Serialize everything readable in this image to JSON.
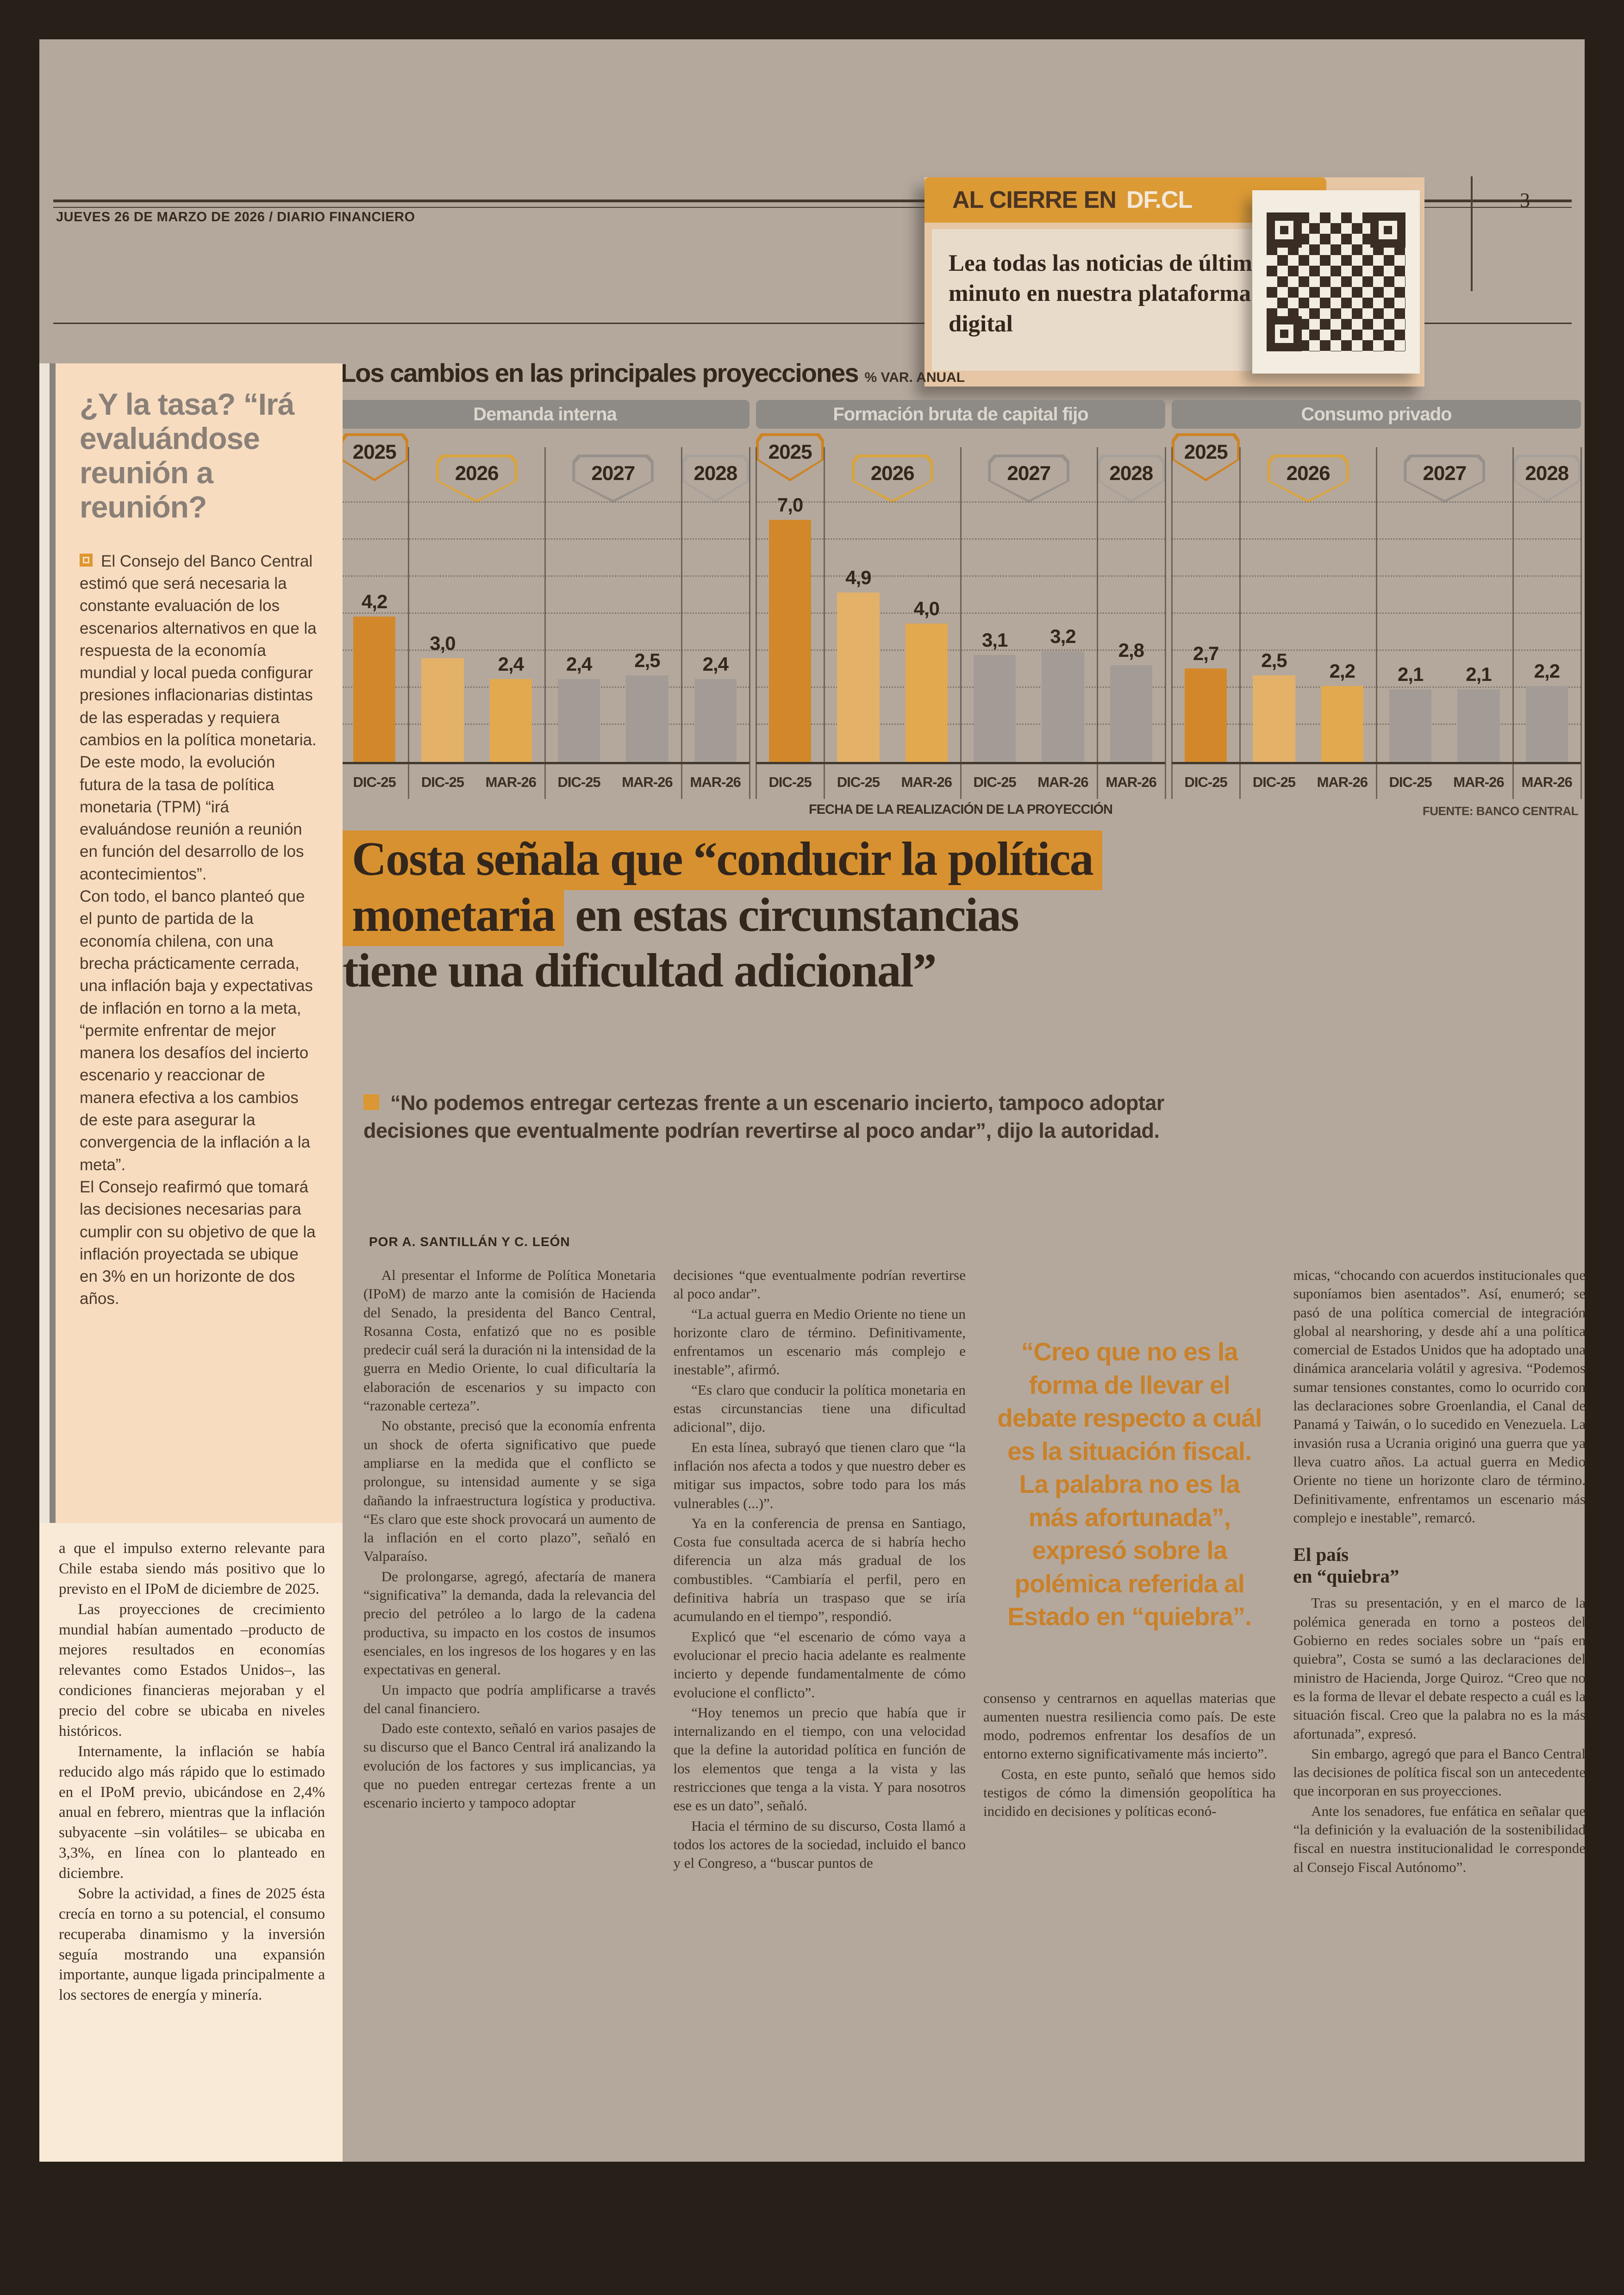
{
  "header": {
    "date_line": "JUEVES 26 DE MARZO DE 2026 / DIARIO FINANCIERO",
    "page_number": "3"
  },
  "al_cierre": {
    "banner_prefix": "AL CIERRE EN",
    "banner_brand": "DF.CL",
    "text": "Lea todas las noticias de último minuto en nuestra plataforma digital"
  },
  "colors": {
    "accent_orange": "#d79130",
    "pull_quote_orange": "#c9812a",
    "peach_box": "#f7dcc0",
    "cream_box": "#f9ead7",
    "paper": "#b4a89d"
  },
  "chart_data": {
    "type": "bar",
    "title": "Los cambios en las principales proyecciones",
    "subtitle": "% VAR. ANUAL",
    "footer": "FECHA DE LA REALIZACIÓN DE LA PROYECCIÓN",
    "source": "FUENTE: BANCO CENTRAL",
    "ylim": [
      0,
      7.5
    ],
    "grid": true,
    "legend_position": "none",
    "colors": {
      "orange_dark": "#d2882a",
      "orange_light": "#e4b169",
      "orange_mid": "#e2a94e",
      "gray": "#a39c96",
      "badge_2025": "#cd8424",
      "badge_2026": "#d9a43e",
      "badge_2027": "#97918b",
      "badge_2028": "#a7a19b"
    },
    "groups": [
      {
        "label": "Demanda interna",
        "sections": [
          {
            "year": "2025",
            "span": 1,
            "color_key": "badge_2025"
          },
          {
            "year": "2026",
            "span": 2,
            "color_key": "badge_2026"
          },
          {
            "year": "2027",
            "span": 2,
            "color_key": "badge_2027"
          },
          {
            "year": "2028",
            "span": 1,
            "color_key": "badge_2028"
          }
        ],
        "bars": [
          {
            "year": "2025",
            "date": "DIC-25",
            "value": 4.2,
            "color_key": "orange_dark"
          },
          {
            "year": "2026",
            "date": "DIC-25",
            "value": 3.0,
            "color_key": "orange_light"
          },
          {
            "year": "2026",
            "date": "MAR-26",
            "value": 2.4,
            "color_key": "orange_mid"
          },
          {
            "year": "2027",
            "date": "DIC-25",
            "value": 2.4,
            "color_key": "gray"
          },
          {
            "year": "2027",
            "date": "MAR-26",
            "value": 2.5,
            "color_key": "gray"
          },
          {
            "year": "2028",
            "date": "MAR-26",
            "value": 2.4,
            "color_key": "gray"
          }
        ]
      },
      {
        "label": "Formación bruta de capital fijo",
        "sections": [
          {
            "year": "2025",
            "span": 1,
            "color_key": "badge_2025"
          },
          {
            "year": "2026",
            "span": 2,
            "color_key": "badge_2026"
          },
          {
            "year": "2027",
            "span": 2,
            "color_key": "badge_2027"
          },
          {
            "year": "2028",
            "span": 1,
            "color_key": "badge_2028"
          }
        ],
        "bars": [
          {
            "year": "2025",
            "date": "DIC-25",
            "value": 7.0,
            "color_key": "orange_dark"
          },
          {
            "year": "2026",
            "date": "DIC-25",
            "value": 4.9,
            "color_key": "orange_light"
          },
          {
            "year": "2026",
            "date": "MAR-26",
            "value": 4.0,
            "color_key": "orange_mid"
          },
          {
            "year": "2027",
            "date": "DIC-25",
            "value": 3.1,
            "color_key": "gray"
          },
          {
            "year": "2027",
            "date": "MAR-26",
            "value": 3.2,
            "color_key": "gray"
          },
          {
            "year": "2028",
            "date": "MAR-26",
            "value": 2.8,
            "color_key": "gray"
          }
        ]
      },
      {
        "label": "Consumo privado",
        "sections": [
          {
            "year": "2025",
            "span": 1,
            "color_key": "badge_2025"
          },
          {
            "year": "2026",
            "span": 2,
            "color_key": "badge_2026"
          },
          {
            "year": "2027",
            "span": 2,
            "color_key": "badge_2027"
          },
          {
            "year": "2028",
            "span": 1,
            "color_key": "badge_2028"
          }
        ],
        "bars": [
          {
            "year": "2025",
            "date": "DIC-25",
            "value": 2.7,
            "color_key": "orange_dark"
          },
          {
            "year": "2026",
            "date": "DIC-25",
            "value": 2.5,
            "color_key": "orange_light"
          },
          {
            "year": "2026",
            "date": "MAR-26",
            "value": 2.2,
            "color_key": "orange_mid"
          },
          {
            "year": "2027",
            "date": "DIC-25",
            "value": 2.1,
            "color_key": "gray"
          },
          {
            "year": "2027",
            "date": "MAR-26",
            "value": 2.1,
            "color_key": "gray"
          },
          {
            "year": "2028",
            "date": "MAR-26",
            "value": 2.2,
            "color_key": "gray"
          }
        ]
      }
    ]
  },
  "sidebar": {
    "title": "¿Y la tasa? “Irá evaluándose reunión a reunión?",
    "paragraphs": [
      "El Consejo del Banco Central estimó que será necesaria la constante evaluación de los escenarios alternativos en que la respuesta de la economía mundial y local pueda configurar presiones inflacionarias distintas de las esperadas y requiera cambios en la política monetaria.",
      "De este modo, la evolución futura de la tasa de política monetaria (TPM) “irá evaluándose reunión a reunión en función del desarrollo de los acontecimientos”.",
      "Con todo, el banco planteó que el punto de partida de la economía chilena, con una brecha prácticamente cerrada, una inflación baja y expectativas de inflación en torno a la meta, “permite enfrentar de mejor manera los desafíos del incierto escenario y reaccionar de manera efectiva a los cambios de este para asegurar la convergencia de la inflación a la meta”.",
      "El Consejo reafirmó que tomará las decisiones necesarias para cumplir con su objetivo de que la inflación proyectada se ubique en 3% en un horizonte de dos años."
    ]
  },
  "left_column": {
    "paragraphs": [
      "a que el impulso externo relevante para Chile estaba siendo más positivo que lo previsto en el IPoM de diciembre de 2025.",
      "Las proyecciones de crecimiento mundial habían aumentado –producto de mejores resultados en economías relevantes como Estados Unidos–, las condiciones financieras mejoraban y el precio del cobre se ubicaba en niveles históricos.",
      "Internamente, la inflación se había reducido algo más rápido que lo estimado en el IPoM previo, ubicándose en 2,4% anual en febrero, mientras que la inflación subyacente –sin volátiles– se ubicaba en 3,3%, en línea con lo planteado en diciembre.",
      "Sobre la actividad, a fines de 2025 ésta crecía en torno a su potencial, el consumo recuperaba dinamismo y la inversión seguía mostrando una expansión importante, aunque ligada principalmente a los sectores de energía y minería."
    ]
  },
  "headline": {
    "line1": "Costa señala que “conducir la política",
    "line2_highlight": "monetaria",
    "line2_rest": " en estas circunstancias",
    "line3": "tiene una dificultad adicional”"
  },
  "lede": "“No podemos entregar certezas frente a un escenario incierto, tampoco adoptar decisiones que eventualmente podrían revertirse al poco andar”, dijo la autoridad.",
  "byline": "POR A. SANTILLÁN Y C. LEÓN",
  "pull_quote": "“Creo que no es la forma de llevar el debate respecto a cuál es la situación fiscal. La palabra no es la más afortunada”, expresó sobre la polémica referida al Estado en “quiebra”.",
  "article": {
    "col1": [
      "Al presentar el Informe de Política Monetaria (IPoM) de marzo ante la comisión de Hacienda del Senado, la presidenta del Banco Central, Rosanna Costa, enfatizó que no es posible predecir cuál será la duración ni la intensidad de la guerra en Medio Oriente, lo cual dificultaría la elaboración de escenarios y su impacto con “razonable certeza”.",
      "No obstante, precisó que la economía enfrenta un shock de oferta significativo que puede ampliarse en la medida que el conflicto se prolongue, su intensidad aumente y se siga dañando la infraestructura logística y productiva. “Es claro que este shock provocará un aumento de la inflación en el corto plazo”, señaló en Valparaíso.",
      "De prolongarse, agregó, afectaría de manera “significativa” la demanda, dada la relevancia del precio del petróleo a lo largo de la cadena productiva, su impacto en los costos de insumos esenciales, en los ingresos de los hogares y en las expectativas en general.",
      "Un impacto que podría amplificarse a través del canal financiero.",
      "Dado este contexto, señaló en varios pasajes de su discurso que el Banco Central irá analizando la evolución de los factores y sus implicancias, ya que no pueden entregar certezas frente a un escenario incierto y tampoco adoptar"
    ],
    "col2": [
      "decisiones “que eventualmente podrían revertirse al poco andar”.",
      "“La actual guerra en Medio Oriente no tiene un horizonte claro de término. Definitivamente, enfrentamos un escenario más complejo e inestable”, afirmó.",
      "“Es claro que conducir la política monetaria en estas circunstancias tiene una dificultad adicional”, dijo.",
      "En esta línea, subrayó que tienen claro que “la inflación nos afecta a todos y que nuestro deber es mitigar sus impactos, sobre todo para los más vulnerables (...)”.",
      "Ya en la conferencia de prensa en Santiago, Costa fue consultada acerca de si habría hecho diferencia un alza más gradual de los combustibles. “Cambiaría el perfil, pero en definitiva habría un traspaso que se iría acumulando en el tiempo”, respondió.",
      "Explicó que “el escenario de cómo vaya a evolucionar el precio hacia adelante es realmente incierto y depende fundamentalmente de cómo evolucione el conflicto”.",
      "“Hoy tenemos un precio que había que ir internalizando en el tiempo, con una velocidad que la define la autoridad política en función de los elementos que tenga a la vista y las restricciones que tenga a la vista. Y para nosotros ese es un dato”, señaló.",
      "Hacia el término de su discurso, Costa llamó a todos los actores de la sociedad, incluido el banco y el Congreso, a “buscar puntos de"
    ],
    "col3": [
      "consenso y centrarnos en aquellas materias que aumenten nuestra resiliencia como país. De este modo, podremos enfrentar los desafíos de un entorno externo significativamente más incierto”.",
      "Costa, en este punto, señaló que hemos sido testigos de cómo la dimensión geopolítica ha incidido en decisiones y políticas econó-"
    ],
    "col4_before": [
      "micas, “chocando con acuerdos institucionales que suponíamos bien asentados”. Así, enumeró; se pasó de una política comercial de integración global al nearshoring, y desde ahí a una política comercial de Estados Unidos que ha adoptado una dinámica arancelaria volátil y agresiva. “Podemos sumar tensiones constantes, como lo ocurrido con las declaraciones sobre Groenlandia, el Canal de Panamá y Taiwán, o lo sucedido en Venezuela. La invasión rusa a Ucrania originó una guerra que ya lleva cuatro años. La actual guerra en Medio Oriente no tiene un horizonte claro de término. Definitivamente, enfrentamos un escenario más complejo e inestable”, remarcó."
    ],
    "col4_subhead_line1": "El país",
    "col4_subhead_line2": "en “quiebra”",
    "col4_after": [
      "Tras su presentación, y en el marco de la polémica generada en torno a posteos del Gobierno en redes sociales sobre un “país en quiebra”, Costa se sumó a las declaraciones del ministro de Hacienda, Jorge Quiroz. “Creo que no es la forma de llevar el debate respecto a cuál es la situación fiscal. Creo que la palabra no es la más afortunada”, expresó.",
      "Sin embargo, agregó que para el Banco Central las decisiones de política fiscal son un antecedente que incorporan en sus proyecciones.",
      "Ante los senadores, fue enfática en señalar que “la definición y la evaluación de la sostenibilidad fiscal en nuestra institucionalidad le corresponde al Consejo Fiscal Autónomo”."
    ]
  }
}
